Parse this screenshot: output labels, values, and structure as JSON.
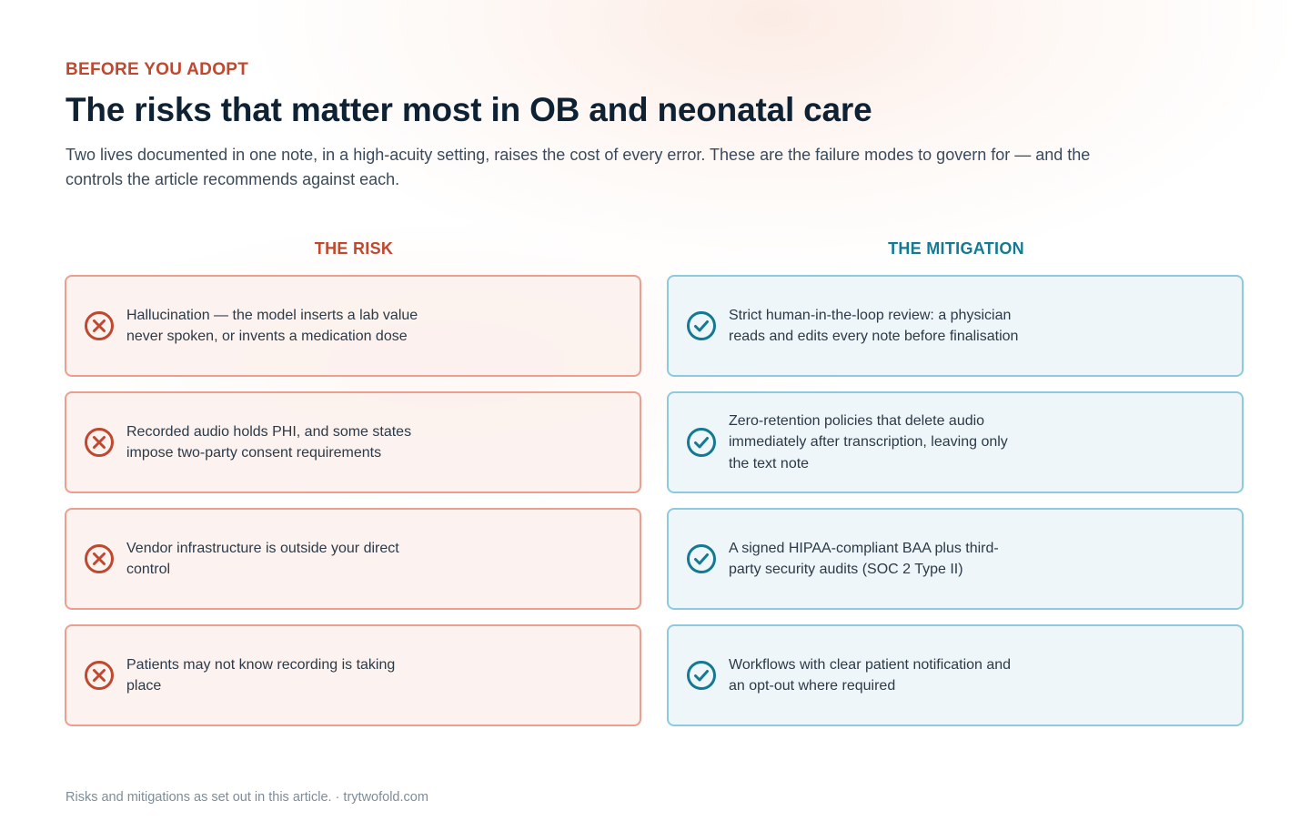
{
  "header": {
    "eyebrow": "BEFORE YOU ADOPT",
    "title": "The risks that matter most in OB and neonatal care",
    "subtitle": "Two lives documented in one note, in a high-acuity setting, raises the cost of every error. These are the failure modes to govern for — and the controls the article recommends against each."
  },
  "columns": {
    "risk_heading": "THE RISK",
    "mitigation_heading": "THE MITIGATION"
  },
  "rows": [
    {
      "risk": "Hallucination — the model inserts a lab value never spoken, or invents a medication dose",
      "mitigation": "Strict human-in-the-loop review: a physician reads and edits every note before finalisation"
    },
    {
      "risk": "Recorded audio holds PHI, and some states impose two-party consent requirements",
      "mitigation": "Zero-retention policies that delete audio immediately after transcription, leaving only the text note"
    },
    {
      "risk": "Vendor infrastructure is outside your direct control",
      "mitigation": "A signed HIPAA-compliant BAA plus third-party security audits (SOC 2 Type II)"
    },
    {
      "risk": "Patients may not know recording is taking place",
      "mitigation": "Workflows with clear patient notification and an opt-out where required"
    }
  ],
  "icons": {
    "risk": "x-circle-icon",
    "mitigation": "check-circle-icon"
  },
  "colors": {
    "risk_accent": "#c0482f",
    "mitigation_accent": "#137a91",
    "title": "#0f2233"
  },
  "footer": {
    "source": "Risks and mitigations as set out in this article. · trytwofold.com"
  }
}
